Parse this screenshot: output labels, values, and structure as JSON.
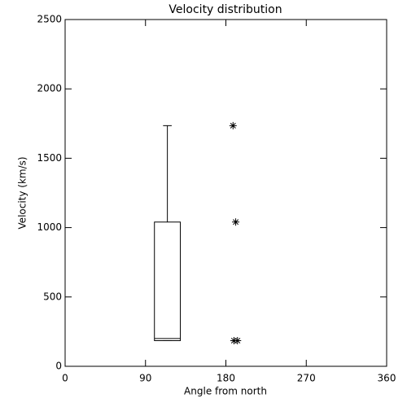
{
  "chart_data": [
    {
      "type": "box",
      "title": "Velocity distribution",
      "xlabel": "Angle from north",
      "ylabel": "Velocity (km/s)",
      "xlim": [
        0,
        360
      ],
      "xticks": [
        0,
        90,
        180,
        270,
        360
      ],
      "ylim": [
        0,
        2500
      ],
      "yticks": [
        0,
        500,
        1000,
        1500,
        2000,
        2500
      ],
      "x_range": [
        100,
        129
      ],
      "whisker_low": 185,
      "q1": 185,
      "median": 200,
      "q3": 1040,
      "whisker_high": 1735,
      "color": "#000000"
    },
    {
      "type": "scatter",
      "x": [
        188,
        191,
        189,
        193
      ],
      "y": [
        1735,
        1040,
        185,
        185
      ],
      "color": "#000000"
    }
  ]
}
